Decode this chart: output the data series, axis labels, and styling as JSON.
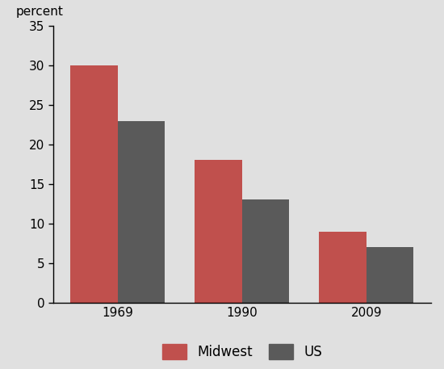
{
  "years": [
    "1969",
    "1990",
    "2009"
  ],
  "midwest_values": [
    30,
    18,
    9
  ],
  "us_values": [
    23,
    13,
    7
  ],
  "midwest_color": "#C0504D",
  "us_color": "#5A5A5A",
  "background_color": "#E0E0E0",
  "ylabel": "percent",
  "ylim": [
    0,
    35
  ],
  "yticks": [
    0,
    5,
    10,
    15,
    20,
    25,
    30,
    35
  ],
  "legend_labels": [
    "Midwest",
    "US"
  ],
  "bar_width": 0.38
}
